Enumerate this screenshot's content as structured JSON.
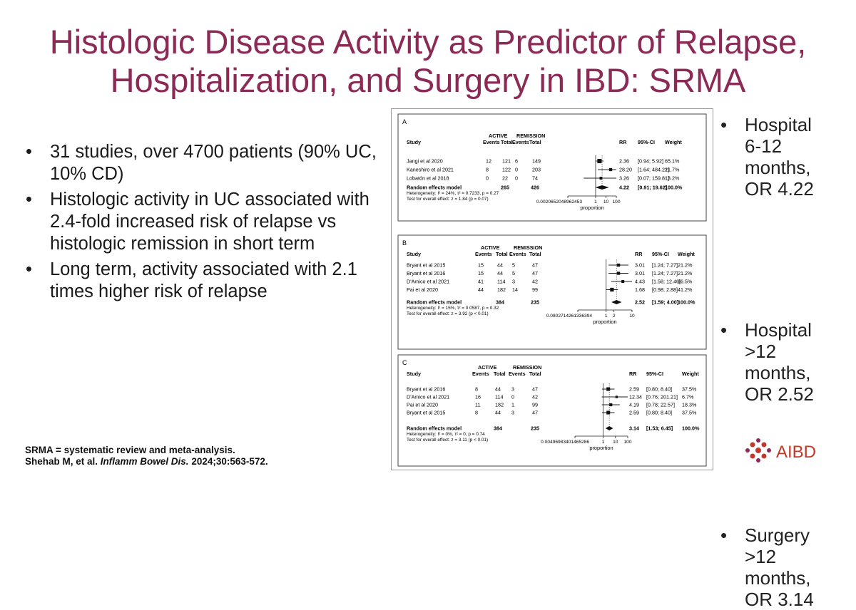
{
  "title": {
    "line1": "Histologic Disease Activity as Predictor of Relapse,",
    "line2": "Hospitalization, and Surgery in IBD: SRMA"
  },
  "bullets": [
    "31 studies, over 4700 patients (90% UC, 10% CD)",
    "Histologic activity in UC associated with 2.4-fold increased risk of relapse vs histologic remission in short term",
    "Long term, activity associated with 2.1 times higher risk of relapse"
  ],
  "right_bullets": [
    [
      "Hospital",
      "6-12",
      "months,",
      "OR 4.22"
    ],
    [
      "Hospital",
      ">12",
      "months,",
      "OR 2.52"
    ],
    [
      "Surgery",
      ">12",
      "months,",
      "OR 3.14"
    ]
  ],
  "footnote": {
    "line1": "SRMA = systematic review and meta-analysis.",
    "line2_prefix": "Shehab M, et al. ",
    "line2_journal": "Inflamm Bowel Dis.",
    "line2_suffix": " 2024;30:563-572."
  },
  "logo": {
    "text": "AIBD",
    "color": "#c0392b"
  },
  "colors": {
    "title": "#8b2a55",
    "accent": "#c0392b"
  },
  "chart_data": [
    {
      "type": "table",
      "panel": "A",
      "headers": {
        "study": "Study",
        "active": "ACTIVE",
        "remission": "REMISSION",
        "events": "Events",
        "total": "Total",
        "rr": "RR",
        "ci": "95%-CI",
        "weight": "Weight"
      },
      "rows": [
        {
          "study": "Jangi et al 2020",
          "ae": "12",
          "at": "121",
          "re": "6",
          "rt": "149",
          "rr": "2.36",
          "ci": "[0.94; 5.92]",
          "weight": "65.1%",
          "rr_val": 2.36,
          "lo": 0.94,
          "hi": 5.92
        },
        {
          "study": "Kaneshiro et al 2021",
          "ae": "8",
          "at": "122",
          "re": "0",
          "rt": "203",
          "rr": "28.20",
          "ci": "[1.64; 484.21]",
          "weight": "21.7%",
          "rr_val": 28.2,
          "lo": 1.64,
          "hi": 484.21
        },
        {
          "study": "Lobatón et al 2018",
          "ae": "0",
          "at": "22",
          "re": "0",
          "rt": "74",
          "rr": "3.26",
          "ci": "[0.07; 159.81]",
          "weight": "13.2%",
          "rr_val": 3.26,
          "lo": 0.07,
          "hi": 159.81
        }
      ],
      "summary": {
        "label": "Random effects model",
        "at": "265",
        "rt": "426",
        "rr": "4.22",
        "ci": "[0.91; 19.62]",
        "weight": "100.0%",
        "rr_val": 4.22,
        "lo": 0.91,
        "hi": 19.62
      },
      "heterogeneity": "Heterogeneity: I² = 24%, τ² = 0.7233, p = 0.27",
      "overall": "Test for overall effect: z = 1.84 (p = 0.07)",
      "ticks": [
        "0.0020652048962453",
        "1",
        "10",
        "100"
      ],
      "tick_vals": [
        0.00206520489624538,
        1,
        10,
        100
      ],
      "xlabel": "proportion"
    },
    {
      "type": "table",
      "panel": "B",
      "headers": {
        "study": "Study",
        "active": "ACTIVE",
        "remission": "REMISSION",
        "events": "Events",
        "total": "Total",
        "rr": "RR",
        "ci": "95%-CI",
        "weight": "Weight"
      },
      "rows": [
        {
          "study": "Bryant et al 2015",
          "ae": "15",
          "at": "44",
          "re": "5",
          "rt": "47",
          "rr": "3.01",
          "ci": "[1.24; 7.27]",
          "weight": "21.2%",
          "rr_val": 3.01,
          "lo": 1.24,
          "hi": 7.27
        },
        {
          "study": "Bryant et al 2016",
          "ae": "15",
          "at": "44",
          "re": "5",
          "rt": "47",
          "rr": "3.01",
          "ci": "[1.24; 7.27]",
          "weight": "21.2%",
          "rr_val": 3.01,
          "lo": 1.24,
          "hi": 7.27
        },
        {
          "study": "D'Amico et al 2021",
          "ae": "41",
          "at": "114",
          "re": "3",
          "rt": "42",
          "rr": "4.43",
          "ci": "[1.58; 12.46]",
          "weight": "16.5%",
          "rr_val": 4.43,
          "lo": 1.58,
          "hi": 12.46
        },
        {
          "study": "Pai et al 2020",
          "ae": "44",
          "at": "182",
          "re": "14",
          "rt": "99",
          "rr": "1.68",
          "ci": "[0.98; 2.88]",
          "weight": "41.2%",
          "rr_val": 1.68,
          "lo": 0.98,
          "hi": 2.88
        }
      ],
      "summary": {
        "label": "Random effects model",
        "at": "384",
        "rt": "235",
        "rr": "2.52",
        "ci": "[1.59; 4.00]",
        "weight": "100.0%",
        "rr_val": 2.52,
        "lo": 1.59,
        "hi": 4.0
      },
      "heterogeneity": "Heterogeneity: I² = 15%, τ² = 0.0587, p = 0.32",
      "overall": "Test for overall effect: z = 3.92 (p < 0.01)",
      "ticks": [
        "0.0802714261336394",
        "1",
        "2",
        "10"
      ],
      "tick_vals": [
        0.0802714261336394,
        1,
        2,
        10
      ],
      "xlabel": "proportion"
    },
    {
      "type": "table",
      "panel": "C",
      "headers": {
        "study": "Study",
        "active": "ACTIVE",
        "remission": "REMISSION",
        "events": "Events",
        "total": "Total",
        "rr": "RR",
        "ci": "95%-CI",
        "weight": "Weight"
      },
      "rows": [
        {
          "study": "Bryant et al 2016",
          "ae": "8",
          "at": "44",
          "re": "3",
          "rt": "47",
          "rr": "2.59",
          "ci": "[0.80; 8.40]",
          "weight": "37.5%",
          "rr_val": 2.59,
          "lo": 0.8,
          "hi": 8.4
        },
        {
          "study": "D'Amico et al 2021",
          "ae": "16",
          "at": "114",
          "re": "0",
          "rt": "42",
          "rr": "12.34",
          "ci": "[0.76; 201.21]",
          "weight": "6.7%",
          "rr_val": 12.34,
          "lo": 0.76,
          "hi": 201.21
        },
        {
          "study": "Pai et al 2020",
          "ae": "11",
          "at": "182",
          "re": "1",
          "rt": "99",
          "rr": "4.19",
          "ci": "[0.78; 22.57]",
          "weight": "18.3%",
          "rr_val": 4.19,
          "lo": 0.78,
          "hi": 22.57
        },
        {
          "study": "Bryant et al 2015",
          "ae": "8",
          "at": "44",
          "re": "3",
          "rt": "47",
          "rr": "2.59",
          "ci": "[0.80; 8.40]",
          "weight": "37.5%",
          "rr_val": 2.59,
          "lo": 0.8,
          "hi": 8.4
        }
      ],
      "summary": {
        "label": "Random effects model",
        "at": "384",
        "rt": "235",
        "rr": "3.14",
        "ci": "[1.53; 6.45]",
        "weight": "100.0%",
        "rr_val": 3.14,
        "lo": 1.53,
        "hi": 6.45
      },
      "heterogeneity": "Heterogeneity: I² = 0%, τ² = 0, p = 0.74",
      "overall": "Test for overall effect: z = 3.11 (p < 0.01)",
      "ticks": [
        "0.00496983401465286",
        "1",
        "10",
        "100"
      ],
      "tick_vals": [
        0.00496983401465286,
        1,
        10,
        100
      ],
      "xlabel": "proportion"
    }
  ]
}
